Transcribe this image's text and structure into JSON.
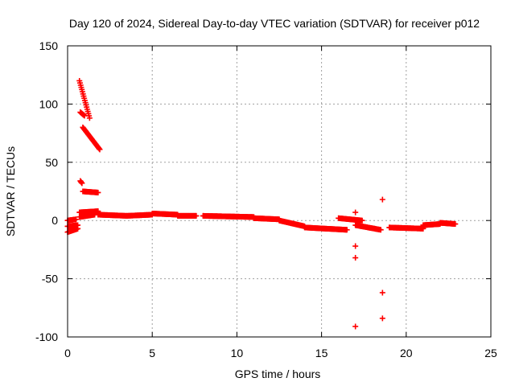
{
  "chart_data": {
    "type": "scatter",
    "title": "Day 120 of 2024, Sidereal Day-to-day VTEC variation (SDTVAR) for receiver p012",
    "xlabel": "GPS time / hours",
    "ylabel": "SDTVAR / TECUs",
    "xlim": [
      0,
      25
    ],
    "ylim": [
      -100,
      150
    ],
    "xticks": [
      0,
      5,
      10,
      15,
      20,
      25
    ],
    "yticks": [
      -100,
      -50,
      0,
      50,
      100,
      150
    ],
    "xtick_labels": [
      "0",
      "5",
      "10",
      "15",
      "20",
      "25"
    ],
    "ytick_labels": [
      "-100",
      "-50",
      "0",
      "50",
      "100",
      "150"
    ],
    "grid": true,
    "marker": "+",
    "color": "#ff0000",
    "series": [
      {
        "name": "SDTVAR",
        "segments": [
          {
            "x": [
              0.0,
              0.5
            ],
            "y": [
              0,
              1
            ]
          },
          {
            "x": [
              0.0,
              0.6
            ],
            "y": [
              -10,
              -7
            ]
          },
          {
            "x": [
              0.0,
              0.6
            ],
            "y": [
              -5,
              -4
            ]
          },
          {
            "x": [
              0.7,
              1.3
            ],
            "y": [
              120,
              88
            ]
          },
          {
            "x": [
              0.75,
              1.0
            ],
            "y": [
              93,
              90
            ]
          },
          {
            "x": [
              0.9,
              1.9
            ],
            "y": [
              80,
              61
            ]
          },
          {
            "x": [
              0.75,
              0.85
            ],
            "y": [
              34,
              32
            ]
          },
          {
            "x": [
              0.9,
              1.8
            ],
            "y": [
              25,
              24
            ]
          },
          {
            "x": [
              0.7,
              1.8
            ],
            "y": [
              7,
              8
            ]
          },
          {
            "x": [
              0.7,
              1.6
            ],
            "y": [
              3,
              5
            ]
          },
          {
            "x": [
              1.8,
              3.5
            ],
            "y": [
              5,
              4
            ]
          },
          {
            "x": [
              3.5,
              5.0
            ],
            "y": [
              4,
              5
            ]
          },
          {
            "x": [
              5.0,
              6.5
            ],
            "y": [
              6,
              5
            ]
          },
          {
            "x": [
              6.5,
              7.6
            ],
            "y": [
              4,
              4
            ]
          },
          {
            "x": [
              8.0,
              11.0
            ],
            "y": [
              4,
              3
            ]
          },
          {
            "x": [
              11.0,
              12.5
            ],
            "y": [
              2,
              1
            ]
          },
          {
            "x": [
              12.5,
              14.0
            ],
            "y": [
              0,
              -5
            ]
          },
          {
            "x": [
              14.0,
              16.5
            ],
            "y": [
              -6,
              -8
            ]
          },
          {
            "x": [
              16.0,
              17.4
            ],
            "y": [
              2,
              0
            ]
          },
          {
            "x": [
              17.0,
              18.5
            ],
            "y": [
              -4,
              -8
            ]
          },
          {
            "x": [
              19.0,
              21.0
            ],
            "y": [
              -6,
              -7
            ]
          },
          {
            "x": [
              21.0,
              22.0
            ],
            "y": [
              -4,
              -3
            ]
          },
          {
            "x": [
              22.0,
              22.9
            ],
            "y": [
              -2,
              -3
            ]
          }
        ],
        "points": [
          {
            "x": 17.0,
            "y": 7
          },
          {
            "x": 17.0,
            "y": -22
          },
          {
            "x": 17.0,
            "y": -32
          },
          {
            "x": 17.0,
            "y": -91
          },
          {
            "x": 18.6,
            "y": 18
          },
          {
            "x": 18.6,
            "y": -62
          },
          {
            "x": 18.6,
            "y": -84
          }
        ]
      }
    ]
  }
}
